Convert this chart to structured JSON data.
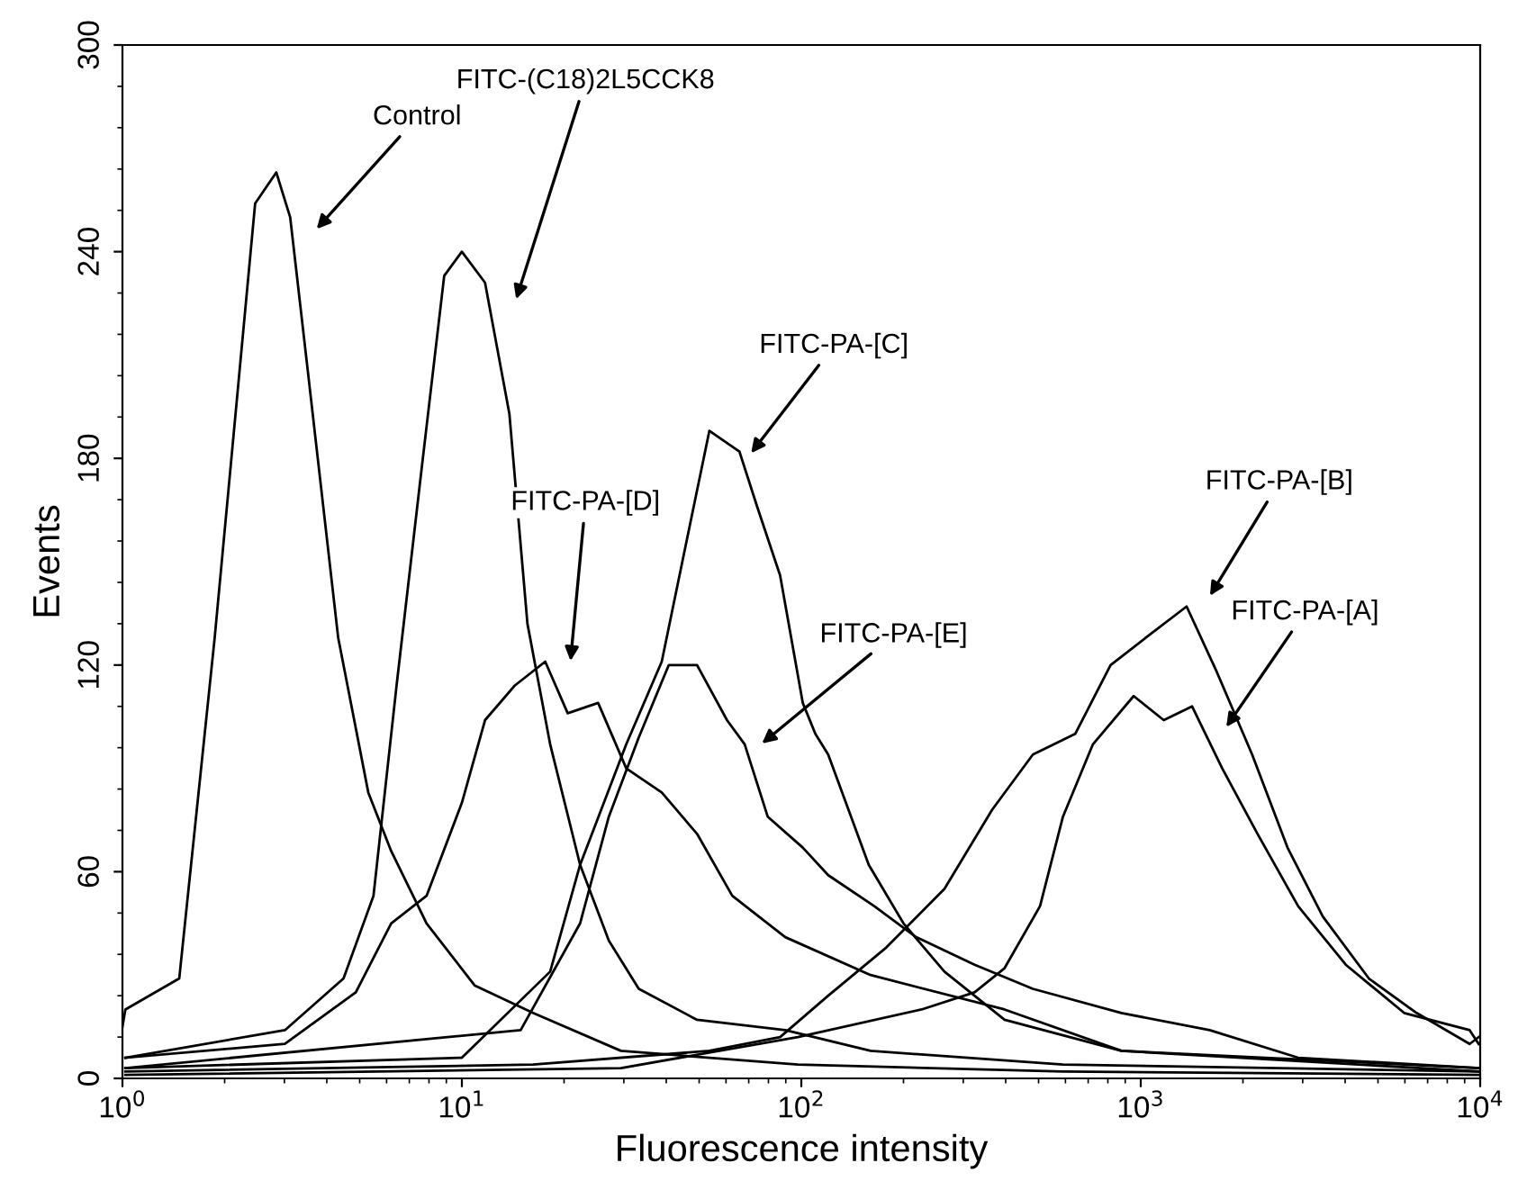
{
  "chart_data": {
    "type": "line",
    "xlabel": "Fluorescence intensity",
    "ylabel": "Events",
    "log": "x",
    "xlim": [
      1,
      10000
    ],
    "ylim": [
      0,
      300
    ],
    "xticks": [
      {
        "value": 1,
        "label": "10$^{0}$"
      },
      {
        "value": 10,
        "label": "10$^{1}$"
      },
      {
        "value": 100,
        "label": "10$^{2}$"
      },
      {
        "value": 1000,
        "label": "10$^{3}$"
      },
      {
        "value": 10000,
        "label": "10$^{4}$"
      }
    ],
    "yticks": [
      0,
      60,
      120,
      180,
      240,
      300
    ],
    "grid": false,
    "legend": false,
    "line_style": "solid",
    "marker": "none",
    "series": [
      {
        "color": "#000000",
        "x": [
          1.0,
          1.02,
          1.47,
          1.87,
          2.46,
          2.84,
          3.12,
          3.52,
          4.32,
          5.3,
          6.19,
          7.87,
          10.9,
          16.2,
          29.4,
          97.7,
          590,
          9900
        ],
        "values": [
          15,
          20,
          29,
          128,
          254,
          263,
          250,
          205,
          128,
          83,
          66,
          45,
          27,
          19,
          8,
          4,
          2,
          1
        ]
      },
      {
        "color": "#000000",
        "x": [
          1.02,
          3.01,
          4.48,
          5.49,
          6.42,
          7.59,
          8.87,
          10,
          11.7,
          13.8,
          15.6,
          18.2,
          22.3,
          27.1,
          33.2,
          49.3,
          89.7,
          160,
          590,
          9900
        ],
        "values": [
          6,
          14,
          29,
          53,
          114,
          176,
          233,
          240,
          231,
          193,
          132,
          97,
          62,
          40,
          26,
          17,
          14,
          8,
          4,
          2
        ]
      },
      {
        "color": "#000000",
        "x": [
          1.02,
          3.01,
          4.87,
          6.19,
          7.87,
          10,
          11.7,
          14.3,
          17.6,
          20.5,
          25.2,
          30.5,
          38.8,
          49.3,
          62.6,
          89.7,
          160,
          397,
          877,
          9900
        ],
        "values": [
          6,
          10,
          25,
          45,
          53,
          80,
          104,
          114,
          121,
          106,
          109,
          90,
          83,
          71,
          53,
          41,
          30,
          20,
          8,
          2
        ]
      },
      {
        "color": "#000000",
        "x": [
          1.02,
          10,
          18.2,
          22.3,
          30.5,
          38.8,
          47.5,
          53.6,
          65.7,
          74.1,
          86.6,
          101,
          110,
          120,
          158,
          200,
          264,
          397,
          877,
          9900
        ],
        "values": [
          3,
          6,
          31,
          62,
          97,
          121,
          163,
          188,
          182,
          166,
          146,
          109,
          100,
          94,
          62,
          45,
          31,
          17,
          8,
          3
        ]
      },
      {
        "color": "#000000",
        "x": [
          1.02,
          14.9,
          22.3,
          27.1,
          33.2,
          40.7,
          49.3,
          60.4,
          68.1,
          79.6,
          101,
          120,
          164,
          218,
          324,
          481,
          877,
          1596,
          2908,
          9900
        ],
        "values": [
          3,
          14,
          45,
          76,
          99,
          120,
          120,
          104,
          97,
          76,
          67,
          59,
          50,
          41,
          33,
          26,
          19,
          14,
          6,
          3
        ]
      },
      {
        "color": "#000000",
        "x": [
          1.02,
          16.2,
          53.6,
          86.6,
          120,
          178,
          264,
          365,
          481,
          641,
          815,
          1037,
          1365,
          1675,
          2129,
          2706,
          3438,
          4699,
          6494,
          9311,
          9900
        ],
        "values": [
          2,
          4,
          8,
          12,
          24,
          38,
          55,
          78,
          94,
          100,
          120,
          128,
          137,
          118,
          94,
          67,
          47,
          29,
          19,
          10,
          12
        ]
      },
      {
        "color": "#000000",
        "x": [
          1.02,
          29.4,
          97.7,
          226,
          324,
          397,
          505,
          590,
          723,
          953,
          1169,
          1416,
          1738,
          2208,
          2908,
          4018,
          5970,
          9311,
          9900
        ],
        "values": [
          1,
          3,
          12,
          20,
          25,
          32,
          50,
          76,
          97,
          111,
          104,
          108,
          90,
          71,
          50,
          33,
          19,
          14,
          10
        ]
      }
    ],
    "annotations": [
      "Control",
      "FITC-(C18)2L5CCK8",
      "FITC-PA-[C]",
      "FITC-PA-[D]",
      "FITC-PA-[E]",
      "FITC-PA-[B]",
      "FITC-PA-[A]"
    ]
  }
}
